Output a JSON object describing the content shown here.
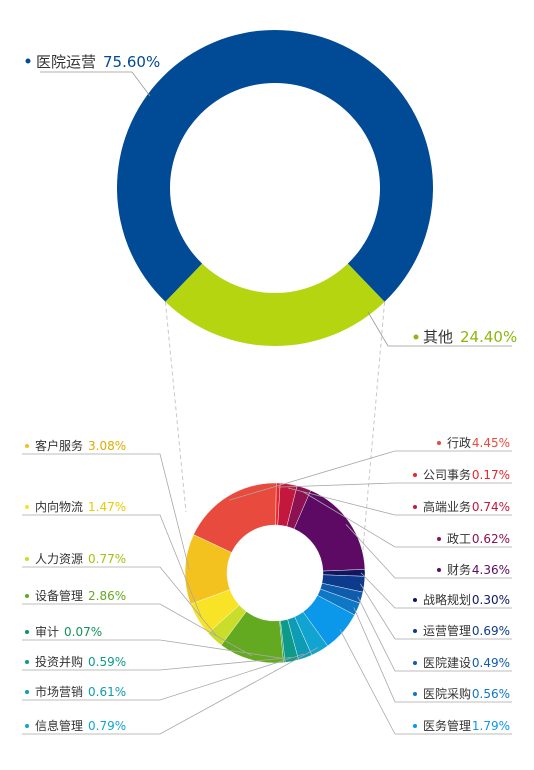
{
  "chart_data": [
    {
      "type": "pie",
      "donut": true,
      "slices": [
        {
          "label": "医院运营",
          "value": "75.60%",
          "num": 75.6,
          "color": "#004a96"
        },
        {
          "label": "其他",
          "value": "24.40%",
          "num": 24.4,
          "color": "#b4d50f"
        }
      ]
    },
    {
      "type": "pie",
      "donut": true,
      "slices": [
        {
          "label": "行政",
          "value": "4.45%",
          "num": 4.45,
          "color": "#e94a3e",
          "side": "right"
        },
        {
          "label": "公司事务",
          "value": "0.17%",
          "num": 0.17,
          "color": "#e8262a",
          "side": "right"
        },
        {
          "label": "高端业务",
          "value": "0.74%",
          "num": 0.74,
          "color": "#c3173d",
          "side": "right"
        },
        {
          "label": "政工",
          "value": "0.62%",
          "num": 0.62,
          "color": "#8e1152",
          "side": "right"
        },
        {
          "label": "财务",
          "value": "4.36%",
          "num": 4.36,
          "color": "#5d0a64",
          "side": "right"
        },
        {
          "label": "战略规划",
          "value": "0.30%",
          "num": 0.3,
          "color": "#101762",
          "side": "right"
        },
        {
          "label": "运营管理",
          "value": "0.69%",
          "num": 0.69,
          "color": "#0d3b8b",
          "side": "right"
        },
        {
          "label": "医院建设",
          "value": "0.49%",
          "num": 0.49,
          "color": "#0f5cad",
          "side": "right"
        },
        {
          "label": "医院采购",
          "value": "0.56%",
          "num": 0.56,
          "color": "#0e78c6",
          "side": "right"
        },
        {
          "label": "医务管理",
          "value": "1.79%",
          "num": 1.79,
          "color": "#0b97ea",
          "side": "right"
        },
        {
          "label": "信息管理",
          "value": "0.79%",
          "num": 0.79,
          "color": "#11a4d1",
          "side": "left"
        },
        {
          "label": "市场营销",
          "value": "0.61%",
          "num": 0.61,
          "color": "#0e9bb5",
          "side": "left"
        },
        {
          "label": "投资并购",
          "value": "0.59%",
          "num": 0.59,
          "color": "#0d9a88",
          "side": "left"
        },
        {
          "label": "审计",
          "value": "0.07%",
          "num": 0.07,
          "color": "#12925a",
          "side": "left"
        },
        {
          "label": "设备管理",
          "value": "2.86%",
          "num": 2.86,
          "color": "#63aa21",
          "side": "left"
        },
        {
          "label": "人力资源",
          "value": "0.77%",
          "num": 0.77,
          "color": "#c9dd2a",
          "side": "left"
        },
        {
          "label": "内向物流",
          "value": "1.47%",
          "num": 1.47,
          "color": "#f8e326",
          "side": "left"
        },
        {
          "label": "客户服务",
          "value": "3.08%",
          "num": 3.08,
          "color": "#f4c21e",
          "side": "left"
        }
      ]
    }
  ]
}
